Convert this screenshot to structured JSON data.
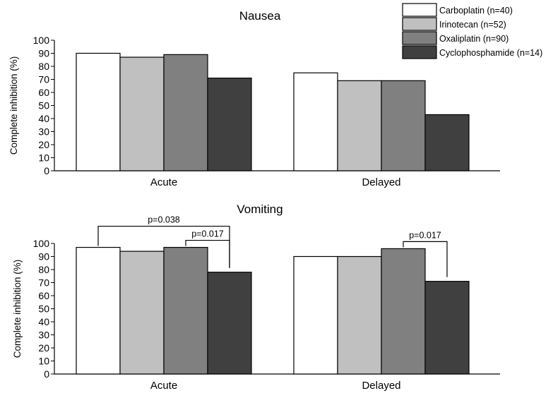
{
  "colors": {
    "Carboplatin": "#ffffff",
    "Irinotecan": "#c0c0c0",
    "Oxaliplatin": "#808080",
    "Cyclophosphamide": "#404040"
  },
  "legend": {
    "placement": "top-right",
    "items": [
      {
        "key": "Carboplatin",
        "label": "Carboplatin (n=40)"
      },
      {
        "key": "Irinotecan",
        "label": "Irinotecan (n=52)"
      },
      {
        "key": "Oxaliplatin",
        "label": "Oxaliplatin (n=90)"
      },
      {
        "key": "Cyclophosphamide",
        "label": "Cyclophosphamide (n=14)"
      }
    ]
  },
  "chart_data": [
    {
      "type": "bar",
      "title": "Nausea",
      "ylabel": "Complete inhibition (%)",
      "xlabel": "",
      "ylim": [
        0,
        100
      ],
      "yticks": [
        0,
        10,
        20,
        30,
        40,
        50,
        60,
        70,
        80,
        90,
        100
      ],
      "grid": false,
      "categories": [
        "Acute",
        "Delayed"
      ],
      "series": [
        {
          "key": "Carboplatin",
          "values": [
            90,
            75
          ]
        },
        {
          "key": "Irinotecan",
          "values": [
            87,
            69
          ]
        },
        {
          "key": "Oxaliplatin",
          "values": [
            89,
            69
          ]
        },
        {
          "key": "Cyclophosphamide",
          "values": [
            71,
            43
          ]
        }
      ],
      "annotations": []
    },
    {
      "type": "bar",
      "title": "Vomiting",
      "ylabel": "Complete inhibition (%)",
      "xlabel": "",
      "ylim": [
        0,
        100
      ],
      "yticks": [
        0,
        10,
        20,
        30,
        40,
        50,
        60,
        70,
        80,
        90,
        100
      ],
      "grid": false,
      "categories": [
        "Acute",
        "Delayed"
      ],
      "series": [
        {
          "key": "Carboplatin",
          "values": [
            97,
            90
          ]
        },
        {
          "key": "Irinotecan",
          "values": [
            94,
            90
          ]
        },
        {
          "key": "Oxaliplatin",
          "values": [
            97,
            96
          ]
        },
        {
          "key": "Cyclophosphamide",
          "values": [
            78,
            71
          ]
        }
      ],
      "annotations": [
        {
          "label": "p=0.038",
          "category": "Acute",
          "from": "Carboplatin",
          "to": "Cyclophosphamide"
        },
        {
          "label": "p=0.017",
          "category": "Acute",
          "from": "Oxaliplatin",
          "to": "Cyclophosphamide"
        },
        {
          "label": "p=0.017",
          "category": "Delayed",
          "from": "Oxaliplatin",
          "to": "Cyclophosphamide"
        }
      ]
    }
  ]
}
